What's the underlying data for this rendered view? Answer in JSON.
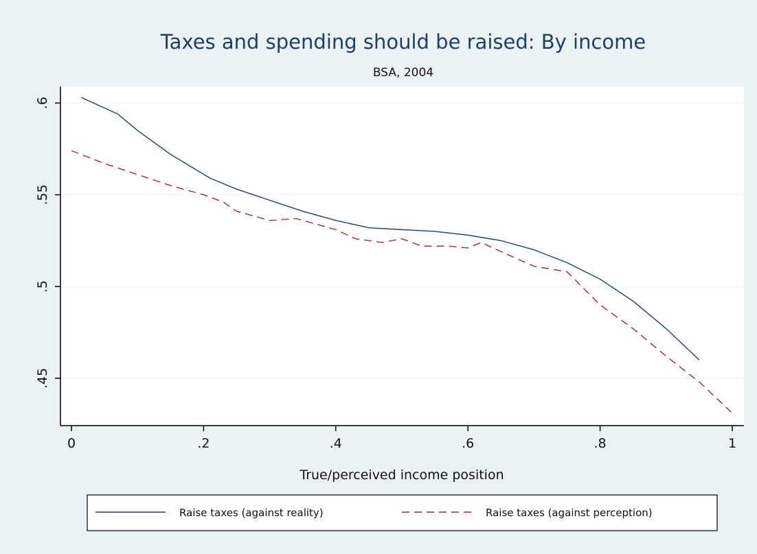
{
  "chart_data": {
    "type": "line",
    "title": "Taxes and spending should be raised: By income",
    "subtitle": "BSA, 2004",
    "xlabel": "True/perceived income position",
    "ylabel": "",
    "xlim": [
      0,
      1
    ],
    "ylim": [
      0.43,
      0.608
    ],
    "xticks": [
      0,
      0.2,
      0.4,
      0.6,
      0.8,
      1
    ],
    "xtick_labels": [
      "0",
      ".2",
      ".4",
      ".6",
      ".8",
      "1"
    ],
    "yticks": [
      0.45,
      0.5,
      0.55,
      0.6
    ],
    "ytick_labels": [
      ".45",
      ".5",
      ".55",
      ".6"
    ],
    "grid": true,
    "legend_position": "bottom",
    "colors": {
      "background": "#eaf2f3",
      "plot": "#ffffff",
      "grid": "#eef2f2",
      "title": "#1f3f66"
    },
    "series": [
      {
        "name": "Raise taxes (against reality)",
        "color": "#1f3f66",
        "dash": "solid",
        "x": [
          0.015,
          0.07,
          0.1,
          0.15,
          0.21,
          0.25,
          0.3,
          0.35,
          0.4,
          0.45,
          0.5,
          0.55,
          0.6,
          0.65,
          0.7,
          0.75,
          0.8,
          0.85,
          0.9,
          0.95
        ],
        "y": [
          0.603,
          0.594,
          0.585,
          0.572,
          0.559,
          0.553,
          0.547,
          0.541,
          0.536,
          0.532,
          0.531,
          0.53,
          0.528,
          0.525,
          0.52,
          0.513,
          0.504,
          0.492,
          0.477,
          0.46
        ]
      },
      {
        "name": "Raise taxes (against perception)",
        "color": "#9b2d2d",
        "dash": "dashed",
        "x": [
          0.0,
          0.05,
          0.1,
          0.15,
          0.2,
          0.23,
          0.25,
          0.3,
          0.34,
          0.4,
          0.43,
          0.47,
          0.5,
          0.53,
          0.57,
          0.6,
          0.62,
          0.65,
          0.7,
          0.75,
          0.8,
          0.85,
          0.9,
          0.95,
          1.0
        ],
        "y": [
          0.574,
          0.567,
          0.561,
          0.555,
          0.55,
          0.546,
          0.541,
          0.536,
          0.537,
          0.531,
          0.526,
          0.524,
          0.526,
          0.522,
          0.522,
          0.521,
          0.524,
          0.519,
          0.511,
          0.508,
          0.49,
          0.477,
          0.462,
          0.448,
          0.431
        ]
      }
    ]
  }
}
